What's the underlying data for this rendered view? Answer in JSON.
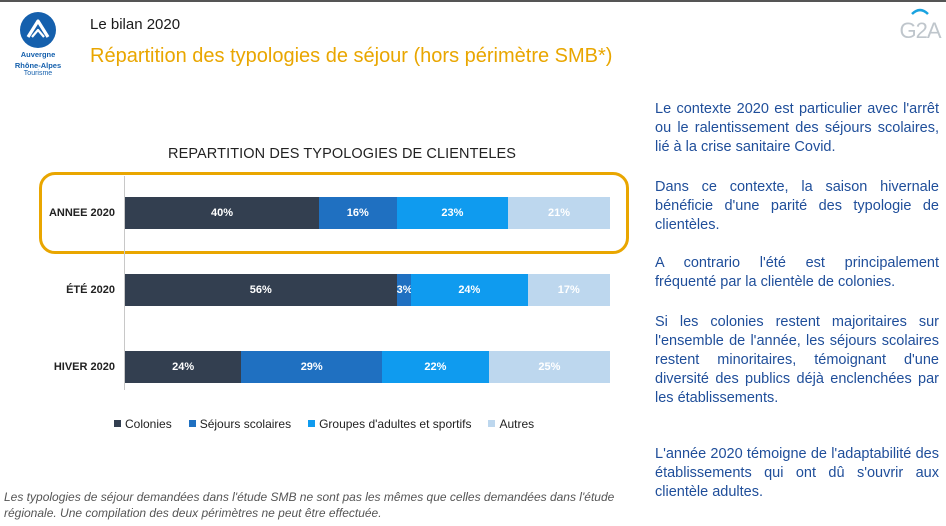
{
  "header": {
    "logo_line1": "Auvergne",
    "logo_line2": "Rhône-Alpes",
    "logo_line3": "Tourisme",
    "supertitle": "Le bilan 2020",
    "title": "Répartition des typologies de séjour (hors périmètre SMB*)",
    "brand_mark": "G2A"
  },
  "chart_data": {
    "type": "bar",
    "orientation": "horizontal",
    "stacked": true,
    "percent_stacked": true,
    "title": "REPARTITION DES TYPOLOGIES DE CLIENTELES",
    "categories": [
      "ANNEE 2020",
      "ÉTÉ 2020",
      "HIVER 2020"
    ],
    "highlighted_category": "ANNEE 2020",
    "series": [
      {
        "name": "Colonies",
        "color": "#333f50",
        "values": [
          40,
          56,
          24
        ],
        "labels": [
          "40%",
          "56%",
          "24%"
        ],
        "label_color": "#ffffff"
      },
      {
        "name": "Séjours scolaires",
        "color": "#1f70c1",
        "values": [
          16,
          3,
          29
        ],
        "labels": [
          "16%",
          "3%",
          "29%"
        ],
        "label_color": "#ffffff"
      },
      {
        "name": "Groupes d'adultes et sportifs",
        "color": "#0f9bef",
        "values": [
          23,
          24,
          22
        ],
        "labels": [
          "23%",
          "24%",
          "22%"
        ],
        "label_color": "#ffffff"
      },
      {
        "name": "Autres",
        "color": "#bdd7ee",
        "values": [
          21,
          17,
          25
        ],
        "labels": [
          "21%",
          "17%",
          "25%"
        ],
        "label_color": "#ffffff"
      }
    ],
    "xlim": [
      0,
      100
    ],
    "legend_position": "bottom",
    "grid": false
  },
  "commentary": [
    "Le contexte 2020 est particulier avec l'arrêt ou le ralentissement des séjours scolaires, lié à la crise sanitaire Covid.",
    "Dans ce contexte, la saison hivernale bénéficie d'une parité des typologie de clientèles.",
    "A contrario l'été est principalement fréquenté par la clientèle de colonies.",
    "Si les colonies restent majoritaires sur l'ensemble de l'année, les séjours scolaires restent minoritaires, témoignant d'une diversité des publics déjà enclenchées par les établissements.",
    "L'année 2020 témoigne de l'adaptabilité des établissements qui ont dû s'ouvrir aux clientèle adultes."
  ],
  "footnote": "Les typologies de séjour demandées dans l'étude SMB ne sont pas les mêmes que celles demandées dans l'étude régionale. Une compilation des deux périmètres ne peut être effectuée."
}
